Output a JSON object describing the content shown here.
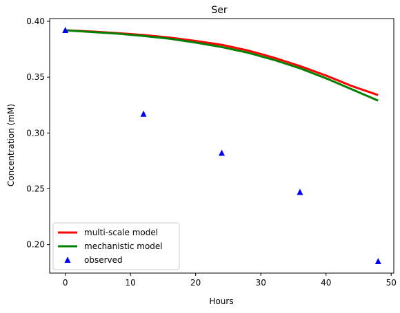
{
  "chart_data": {
    "type": "line",
    "title": "Ser",
    "xlabel": "Hours",
    "ylabel": "Concentration (mM)",
    "xlim": [
      -2.4,
      50.4
    ],
    "ylim": [
      0.1745,
      0.4025
    ],
    "xticks": [
      0,
      10,
      20,
      30,
      40,
      50
    ],
    "yticks": [
      0.2,
      0.25,
      0.3,
      0.35,
      0.4
    ],
    "ytick_labels": [
      "0.20",
      "0.25",
      "0.30",
      "0.35",
      "0.40"
    ],
    "legend_position": "lower-left",
    "grid": false,
    "series": [
      {
        "name": "multi-scale model",
        "style": "line",
        "color": "#ff0000",
        "x": [
          0,
          4,
          8,
          12,
          16,
          20,
          24,
          28,
          32,
          36,
          40,
          44,
          48
        ],
        "y": [
          0.392,
          0.391,
          0.3895,
          0.3878,
          0.3855,
          0.3825,
          0.379,
          0.374,
          0.3675,
          0.36,
          0.3515,
          0.342,
          0.334
        ]
      },
      {
        "name": "mechanistic model",
        "style": "line",
        "color": "#008000",
        "x": [
          0,
          4,
          8,
          12,
          16,
          20,
          24,
          28,
          32,
          36,
          40,
          44,
          48
        ],
        "y": [
          0.392,
          0.3905,
          0.389,
          0.387,
          0.3845,
          0.381,
          0.377,
          0.372,
          0.3655,
          0.358,
          0.349,
          0.339,
          0.329
        ]
      },
      {
        "name": "observed",
        "style": "marker",
        "marker": "triangle",
        "color": "#0000ff",
        "x": [
          0,
          12,
          24,
          36,
          48
        ],
        "y": [
          0.392,
          0.317,
          0.282,
          0.247,
          0.185
        ]
      }
    ]
  }
}
